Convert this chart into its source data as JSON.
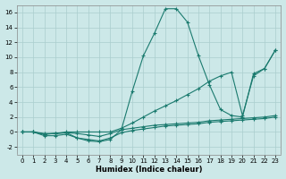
{
  "background_color": "#cce8e8",
  "line_color": "#1a7a6e",
  "grid_color": "#aacece",
  "xlim": [
    -0.5,
    23.5
  ],
  "ylim": [
    -3,
    17
  ],
  "xticks": [
    0,
    1,
    2,
    3,
    4,
    5,
    6,
    7,
    8,
    9,
    10,
    11,
    12,
    13,
    14,
    15,
    16,
    17,
    18,
    19,
    20,
    21,
    22,
    23
  ],
  "yticks": [
    -2,
    0,
    2,
    4,
    6,
    8,
    10,
    12,
    14,
    16
  ],
  "xlabel": "Humidex (Indice chaleur)",
  "line_peak_x": [
    0,
    1,
    2,
    3,
    4,
    5,
    6,
    7,
    8,
    9,
    10,
    11,
    12,
    13,
    14,
    15,
    16,
    17,
    18,
    19,
    20,
    21,
    22,
    23
  ],
  "line_peak_y": [
    0,
    0,
    -0.3,
    -0.2,
    -0.1,
    -0.8,
    -1.2,
    -1.3,
    -1.0,
    0.3,
    5.5,
    10.2,
    13.2,
    16.5,
    16.5,
    14.7,
    10.2,
    6.3,
    3.0,
    2.2,
    2.0,
    7.8,
    8.5,
    11.0
  ],
  "line_diag_x": [
    0,
    1,
    2,
    3,
    4,
    5,
    6,
    7,
    8,
    9,
    10,
    11,
    12,
    13,
    14,
    15,
    16,
    17,
    18,
    19,
    20,
    21,
    22,
    23
  ],
  "line_diag_y": [
    0,
    0,
    -0.2,
    -0.2,
    0,
    0,
    0,
    0,
    0,
    0.5,
    1.2,
    2.0,
    2.8,
    3.5,
    4.2,
    5.0,
    5.8,
    6.8,
    7.5,
    8.0,
    2.2,
    7.5,
    8.5,
    11.0
  ],
  "line_slow_x": [
    0,
    1,
    2,
    3,
    4,
    5,
    6,
    7,
    8,
    9,
    10,
    11,
    12,
    13,
    14,
    15,
    16,
    17,
    18,
    19,
    20,
    21,
    22,
    23
  ],
  "line_slow_y": [
    0,
    0,
    -0.5,
    -0.5,
    -0.3,
    -0.8,
    -1.0,
    -1.2,
    -0.8,
    -0.1,
    0.2,
    0.4,
    0.6,
    0.8,
    0.9,
    1.0,
    1.1,
    1.3,
    1.4,
    1.5,
    1.6,
    1.7,
    1.8,
    2.0
  ],
  "line_flat_x": [
    0,
    1,
    2,
    3,
    4,
    5,
    6,
    7,
    8,
    9,
    10,
    11,
    12,
    13,
    14,
    15,
    16,
    17,
    18,
    19,
    20,
    21,
    22,
    23
  ],
  "line_flat_y": [
    0,
    0,
    -0.3,
    -0.2,
    -0.1,
    -0.2,
    -0.4,
    -0.6,
    -0.2,
    0.3,
    0.5,
    0.7,
    0.9,
    1.0,
    1.1,
    1.2,
    1.3,
    1.5,
    1.6,
    1.7,
    1.8,
    1.9,
    2.0,
    2.2
  ]
}
